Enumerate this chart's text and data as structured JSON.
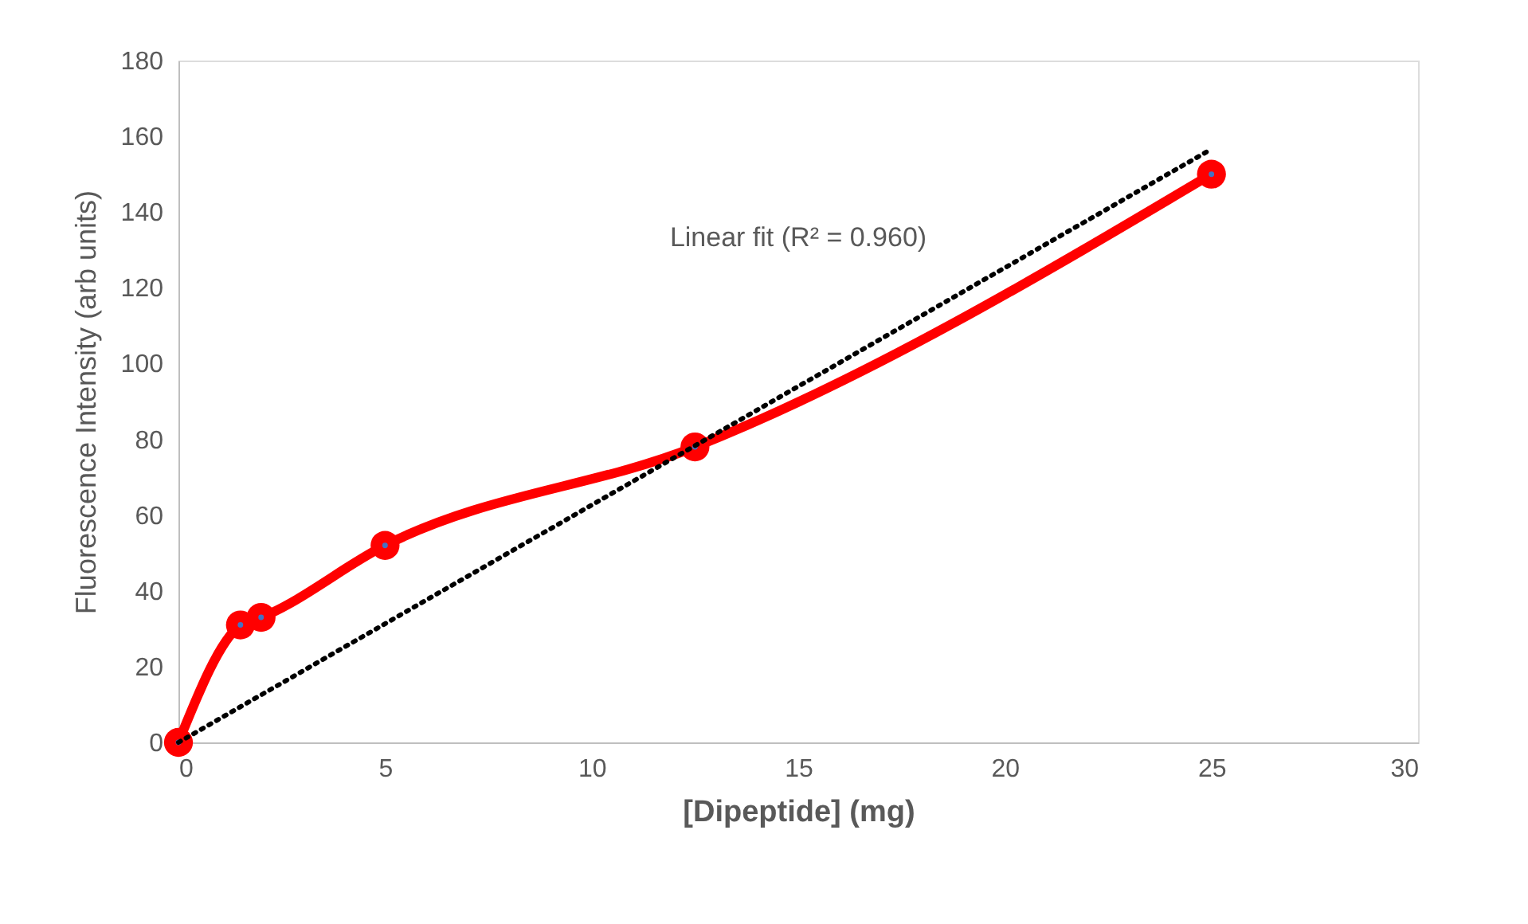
{
  "chart_data": {
    "type": "line",
    "xlabel": "[Dipeptide] (mg)",
    "ylabel": "Fluorescence Intensity (arb units)",
    "xlim": [
      0,
      30
    ],
    "xticks": [
      0,
      5,
      10,
      15,
      20,
      25,
      30
    ],
    "ylim": [
      0,
      180
    ],
    "yticks": [
      0,
      20,
      40,
      60,
      80,
      100,
      120,
      140,
      160,
      180
    ],
    "grid": false,
    "legend": false,
    "series": [
      {
        "color": "#ff0000",
        "marker": "circle",
        "line_style": "solid",
        "x": [
          0,
          1.5,
          2.0,
          5.0,
          12.5,
          25.0
        ],
        "values": [
          0,
          31,
          33,
          52,
          78,
          150
        ]
      },
      {
        "color": "#000000",
        "marker": "none",
        "line_style": "dotted",
        "x": [
          0,
          24.9
        ],
        "values": [
          0,
          156
        ]
      }
    ],
    "annotations": [
      "Linear fit (R² = 0.960)"
    ]
  }
}
